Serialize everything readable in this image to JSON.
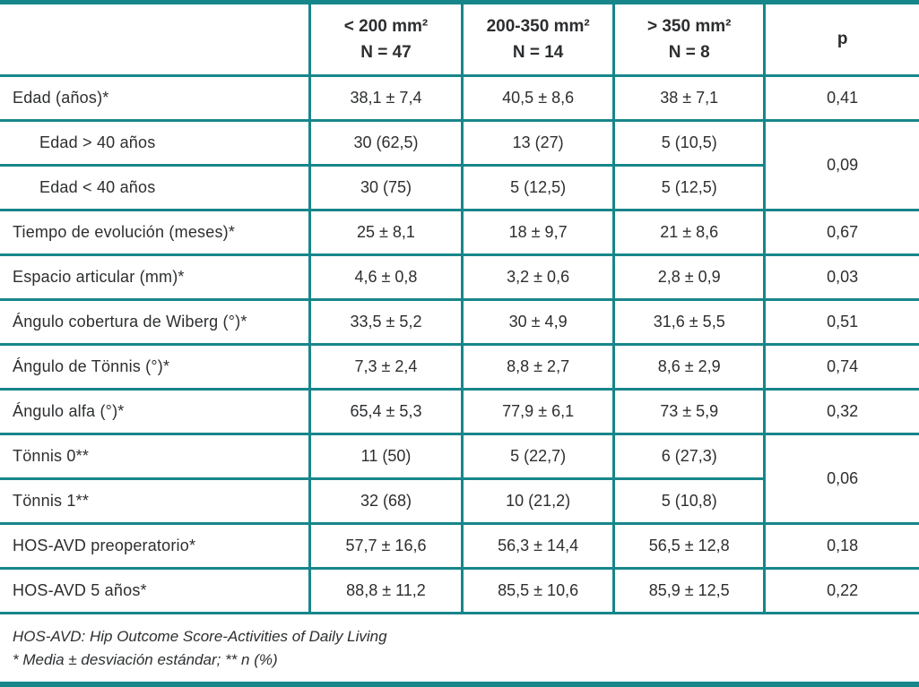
{
  "table": {
    "accent_color": "#17868b",
    "text_color": "#2c2e30",
    "columns": [
      {
        "line1": "< 200 mm²",
        "line2": "N = 47"
      },
      {
        "line1": "200-350 mm²",
        "line2": "N = 14"
      },
      {
        "line1": "> 350 mm²",
        "line2": "N = 8"
      }
    ],
    "p_header": "p",
    "rows": [
      {
        "label": "Edad (años)*",
        "values": [
          "38,1 ± 7,4",
          "40,5 ± 8,6",
          "38 ± 7,1"
        ],
        "p": "0,41"
      },
      {
        "label": "Edad > 40 años",
        "values": [
          "30 (62,5)",
          "13 (27)",
          "5 (10,5)"
        ],
        "p": "0,09"
      },
      {
        "label": "Edad < 40 años",
        "values": [
          "30 (75)",
          "5 (12,5)",
          "5 (12,5)"
        ]
      },
      {
        "label": "Tiempo de evolución (meses)*",
        "values": [
          "25 ± 8,1",
          "18 ± 9,7",
          "21 ± 8,6"
        ],
        "p": "0,67"
      },
      {
        "label": "Espacio articular (mm)*",
        "values": [
          "4,6 ± 0,8",
          "3,2 ± 0,6",
          "2,8 ± 0,9"
        ],
        "p": "0,03"
      },
      {
        "label": "Ángulo cobertura de Wiberg (°)*",
        "values": [
          "33,5 ± 5,2",
          "30 ± 4,9",
          "31,6 ± 5,5"
        ],
        "p": "0,51"
      },
      {
        "label": "Ángulo de Tönnis (°)*",
        "values": [
          "7,3 ± 2,4",
          "8,8 ± 2,7",
          "8,6 ± 2,9"
        ],
        "p": "0,74"
      },
      {
        "label": "Ángulo alfa (°)*",
        "values": [
          "65,4 ± 5,3",
          "77,9 ± 6,1",
          "73 ± 5,9"
        ],
        "p": "0,32"
      },
      {
        "label": "Tönnis 0**",
        "values": [
          "11 (50)",
          "5 (22,7)",
          "6 (27,3)"
        ],
        "p": "0,06"
      },
      {
        "label": "Tönnis 1**",
        "values": [
          "32 (68)",
          "10 (21,2)",
          "5 (10,8)"
        ]
      },
      {
        "label": "HOS-AVD preoperatorio*",
        "values": [
          "57,7 ± 16,6",
          "56,3 ± 14,4",
          "56,5 ± 12,8"
        ],
        "p": "0,18"
      },
      {
        "label": "HOS-AVD 5 años*",
        "values": [
          "88,8 ± 11,2",
          "85,5 ± 10,6",
          "85,9 ± 12,5"
        ],
        "p": "0,22"
      }
    ],
    "footnotes": [
      "HOS-AVD: Hip Outcome Score-Activities of Daily Living",
      "* Media ± desviación estándar; ** n (%)"
    ]
  }
}
